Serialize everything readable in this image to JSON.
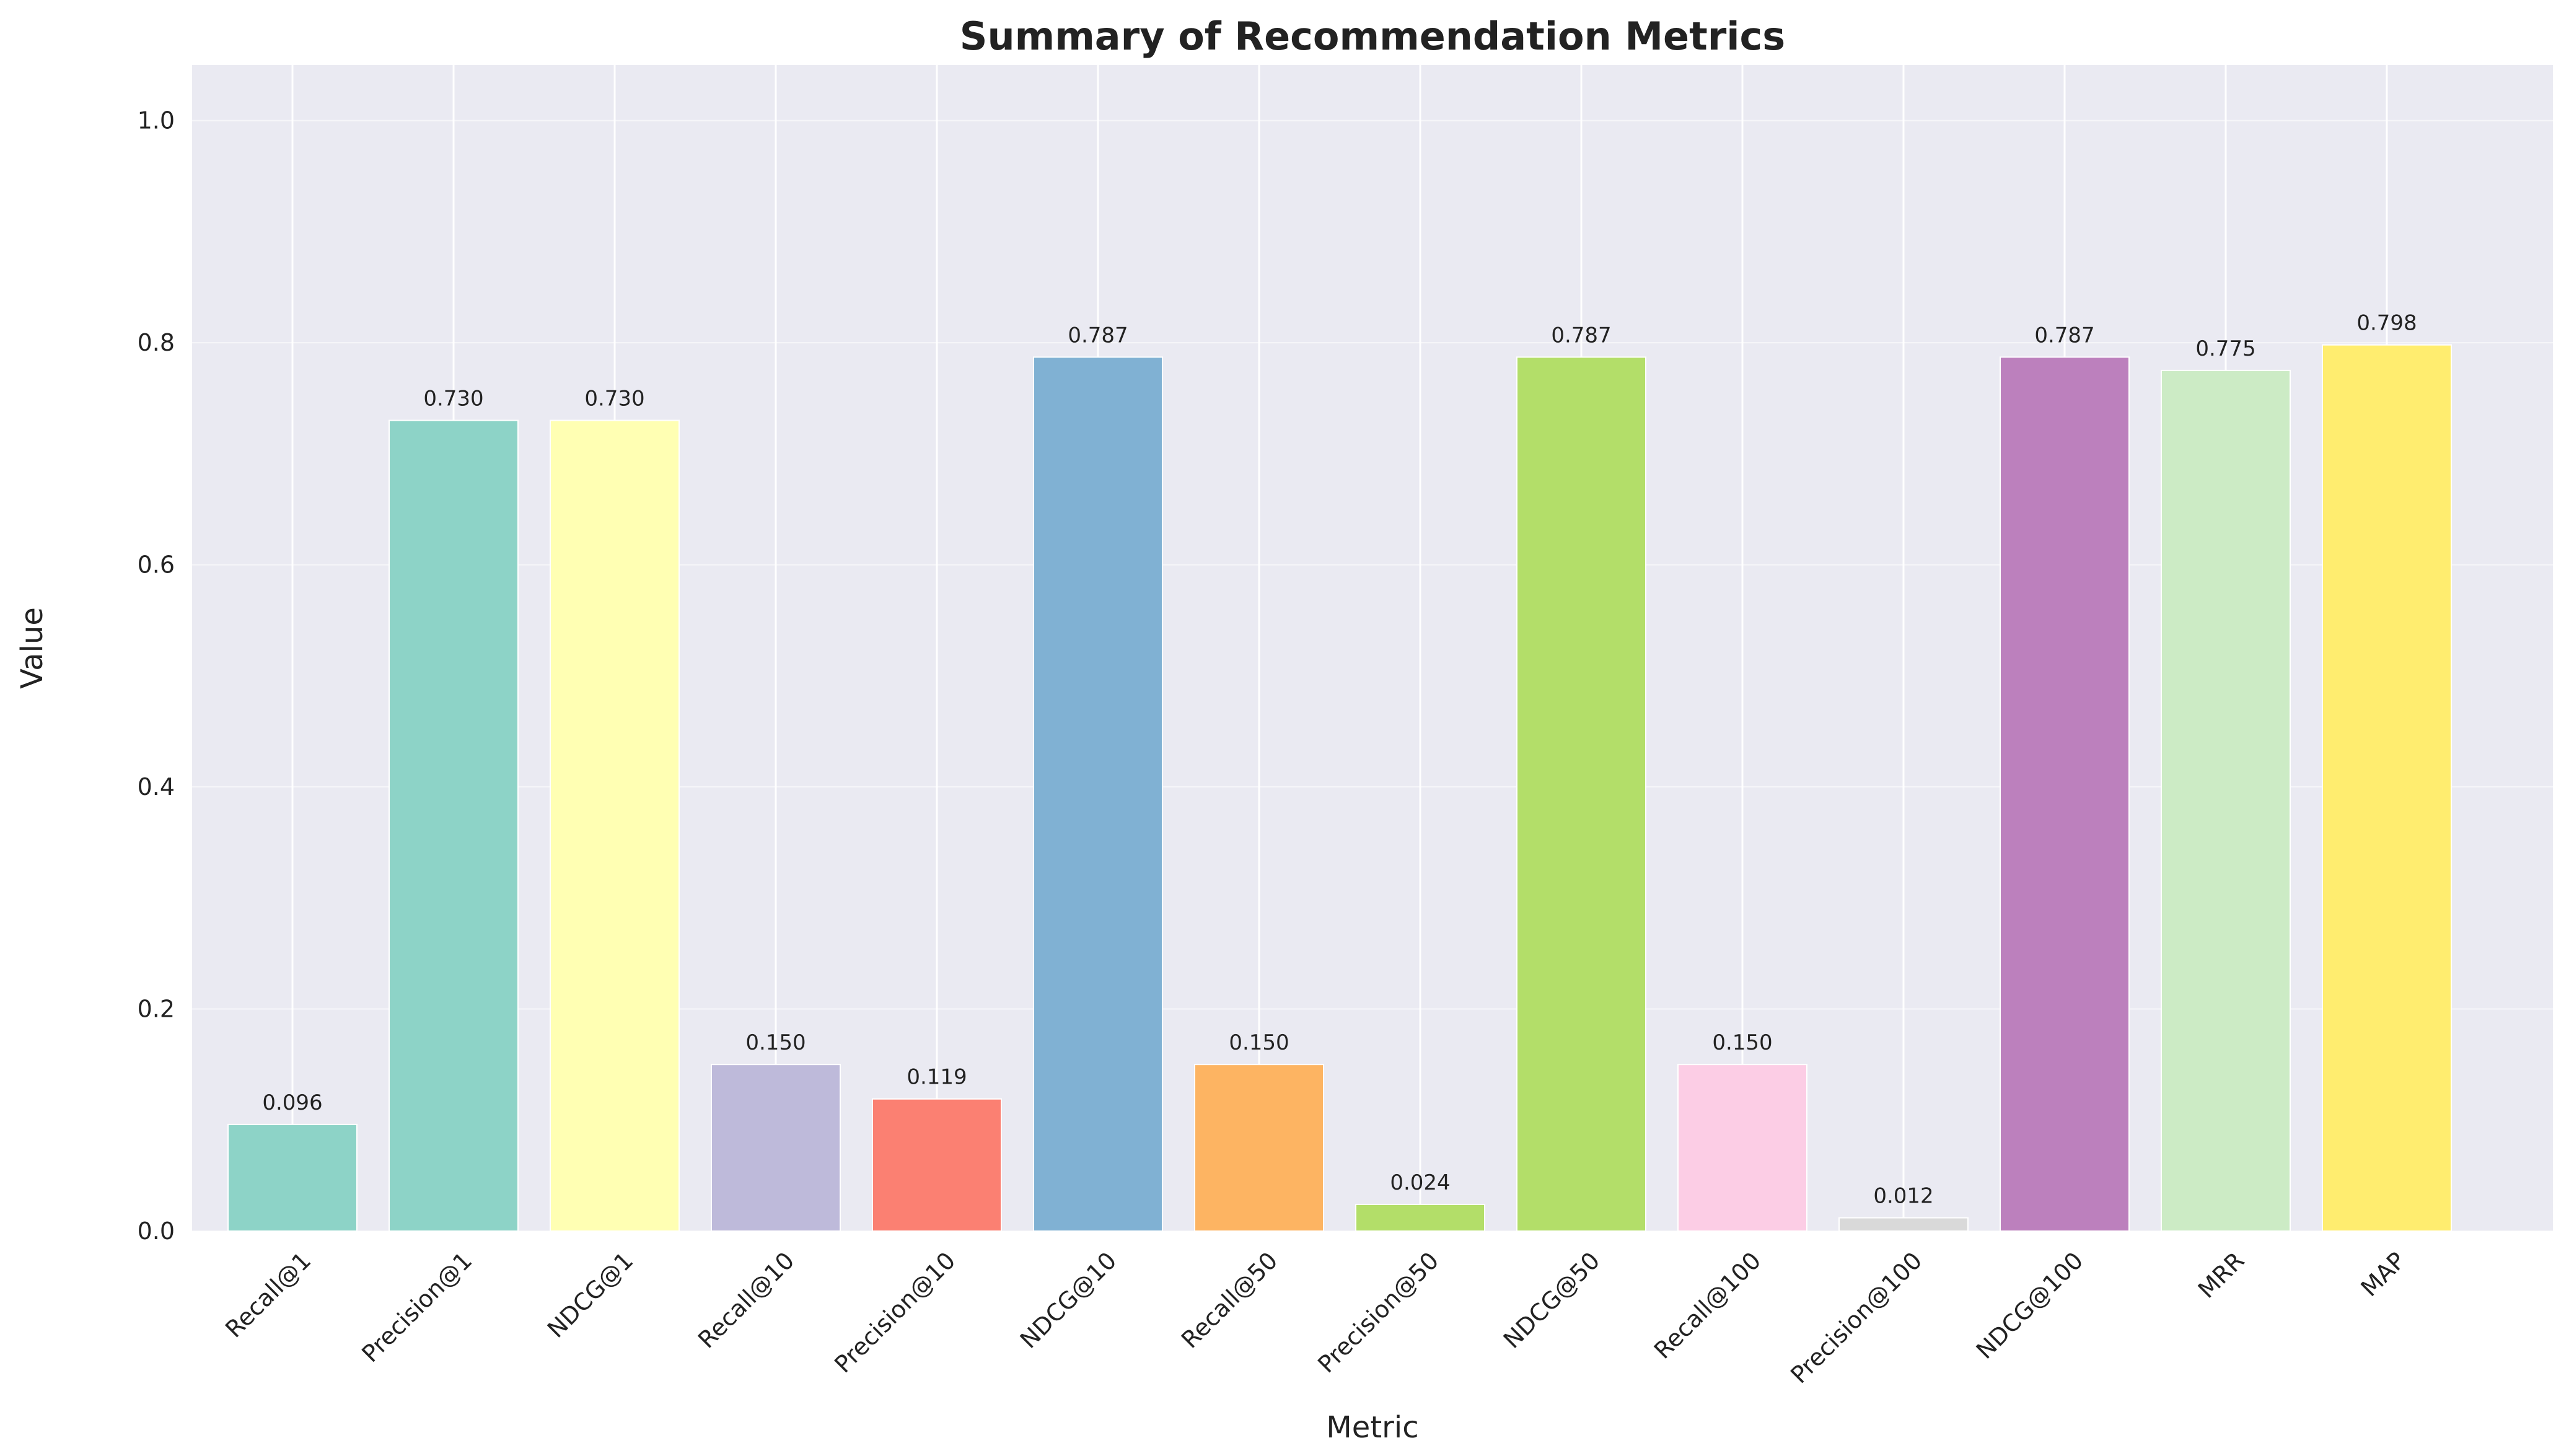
{
  "chart_data": {
    "type": "bar",
    "title": "Summary of Recommendation Metrics",
    "xlabel": "Metric",
    "ylabel": "Value",
    "ylim": [
      0,
      1.05
    ],
    "yticks": [
      "0.0",
      "0.2",
      "0.4",
      "0.6",
      "0.8",
      "1.0"
    ],
    "grid": true,
    "categories": [
      "Recall@1",
      "Precision@1",
      "NDCG@1",
      "Recall@10",
      "Precision@10",
      "NDCG@10",
      "Recall@50",
      "Precision@50",
      "NDCG@50",
      "Recall@100",
      "Precision@100",
      "NDCG@100",
      "MRR",
      "MAP"
    ],
    "values": [
      0.096,
      0.73,
      0.73,
      0.15,
      0.119,
      0.787,
      0.15,
      0.024,
      0.787,
      0.15,
      0.012,
      0.787,
      0.775,
      0.798
    ],
    "value_labels": [
      "0.096",
      "0.730",
      "0.730",
      "0.150",
      "0.119",
      "0.787",
      "0.150",
      "0.024",
      "0.787",
      "0.150",
      "0.012",
      "0.787",
      "0.775",
      "0.798"
    ],
    "colors": [
      "#8dd3c7",
      "#8dd3c7",
      "#ffffb3",
      "#bebada",
      "#fb8072",
      "#80b1d3",
      "#fdb462",
      "#b3de69",
      "#b3de69",
      "#fccde5",
      "#d9d9d9",
      "#bc80bd",
      "#ccebc5",
      "#ffed6f"
    ],
    "background_color": "#eaeaf2",
    "grid_color": "#ffffff"
  }
}
